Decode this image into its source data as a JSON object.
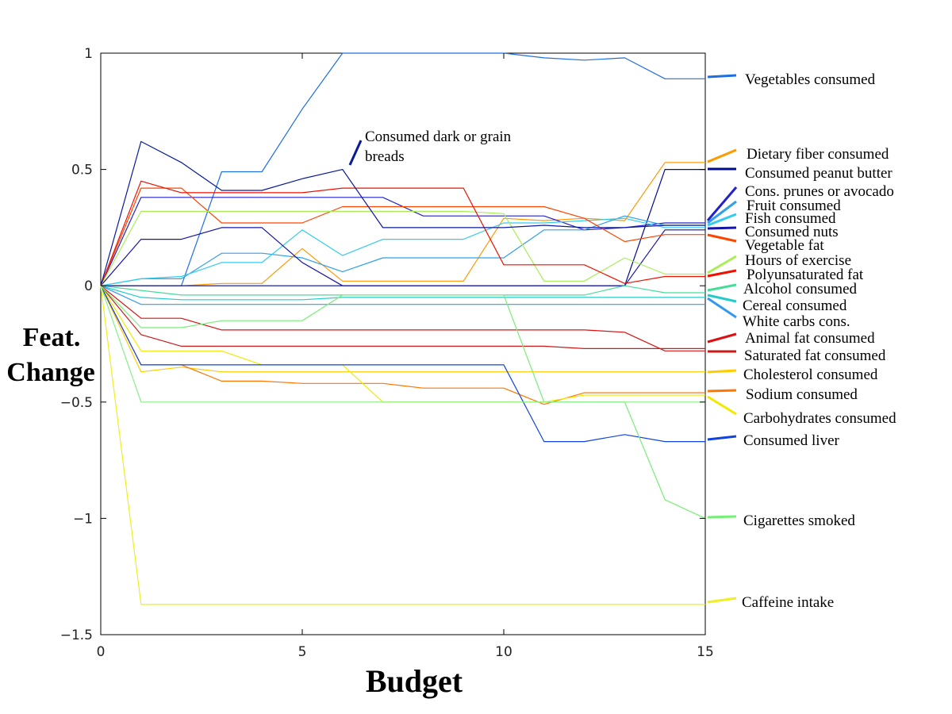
{
  "chart_data": {
    "type": "line",
    "xlabel": "Budget",
    "ylabel_lines": [
      "Feat.",
      "Change"
    ],
    "xlim": [
      0,
      15
    ],
    "ylim": [
      -1.5,
      1
    ],
    "xticks": [
      0,
      5,
      10,
      15
    ],
    "yticks": [
      -1.5,
      -1,
      -0.5,
      0,
      0.5,
      1
    ],
    "ytick_labels": [
      "−1.5",
      "−1",
      "−0.5",
      "0",
      "0.5",
      "1"
    ],
    "grid": false,
    "legend_position": "right",
    "x": [
      0,
      1,
      2,
      3,
      4,
      5,
      6,
      7,
      8,
      9,
      10,
      11,
      12,
      13,
      14,
      15
    ],
    "series": [
      {
        "name": "Vegetables consumed",
        "color": "#1f6fe0",
        "values": [
          0,
          0,
          0,
          0.49,
          0.49,
          0.76,
          1.0,
          1.0,
          1.0,
          1.0,
          1.0,
          0.98,
          0.97,
          0.98,
          0.89,
          0.89
        ]
      },
      {
        "name": "Dietary fiber consumed",
        "color": "#ff9900",
        "values": [
          0,
          0,
          0,
          0.01,
          0.01,
          0.16,
          0.02,
          0.02,
          0.02,
          0.02,
          0.29,
          0.28,
          0.29,
          0.28,
          0.53,
          0.53
        ]
      },
      {
        "name": "Consumed peanut butter",
        "color": "#000b8c",
        "values": [
          0,
          0,
          0,
          0,
          0,
          0,
          0,
          0,
          0,
          0,
          0,
          0,
          0,
          0,
          0.5,
          0.5
        ]
      },
      {
        "name": "Cons. prunes or avocado",
        "color": "#2222cc",
        "values": [
          0,
          0.38,
          0.38,
          0.38,
          0.38,
          0.38,
          0.38,
          0.38,
          0.3,
          0.3,
          0.3,
          0.3,
          0.24,
          0.25,
          0.27,
          0.27
        ]
      },
      {
        "name": "Fruit consumed",
        "color": "#30a0e8",
        "values": [
          0,
          0.03,
          0.03,
          0.14,
          0.14,
          0.12,
          0.06,
          0.12,
          0.12,
          0.12,
          0.12,
          0.24,
          0.24,
          0.3,
          0.26,
          0.26
        ]
      },
      {
        "name": "Fish consumed",
        "color": "#33ccee",
        "values": [
          0,
          0.03,
          0.04,
          0.1,
          0.1,
          0.24,
          0.13,
          0.2,
          0.2,
          0.2,
          0.27,
          0.27,
          0.28,
          0.29,
          0.25,
          0.25
        ]
      },
      {
        "name": "Consumed nuts",
        "color": "#1515aa",
        "values": [
          0,
          0.2,
          0.2,
          0.25,
          0.25,
          0.1,
          0,
          0,
          0,
          0,
          0,
          0,
          0,
          0,
          0.24,
          0.24
        ]
      },
      {
        "name": "Vegetable fat",
        "color": "#ff4400",
        "values": [
          0,
          0.42,
          0.42,
          0.27,
          0.27,
          0.27,
          0.34,
          0.34,
          0.34,
          0.34,
          0.34,
          0.34,
          0.29,
          0.19,
          0.22,
          0.22
        ]
      },
      {
        "name": "Hours of exercise",
        "color": "#a8ee55",
        "values": [
          0,
          0.32,
          0.32,
          0.32,
          0.32,
          0.32,
          0.32,
          0.32,
          0.32,
          0.32,
          0.31,
          0.02,
          0.02,
          0.12,
          0.05,
          0.05
        ]
      },
      {
        "name": "Polyunsaturated fat",
        "color": "#ee1100",
        "values": [
          0,
          0.45,
          0.4,
          0.4,
          0.4,
          0.4,
          0.42,
          0.42,
          0.42,
          0.42,
          0.09,
          0.09,
          0.09,
          0.01,
          0.04,
          0.04
        ]
      },
      {
        "name": "Alcohol consumed",
        "color": "#44dd99",
        "values": [
          0,
          -0.02,
          -0.04,
          -0.04,
          -0.04,
          -0.04,
          -0.04,
          -0.04,
          -0.04,
          -0.04,
          -0.04,
          -0.04,
          -0.04,
          0,
          -0.03,
          -0.03
        ]
      },
      {
        "name": "Cereal consumed",
        "color": "#22cccc",
        "values": [
          0,
          -0.05,
          -0.06,
          -0.06,
          -0.06,
          -0.06,
          -0.05,
          -0.05,
          -0.05,
          -0.05,
          -0.05,
          -0.05,
          -0.05,
          -0.05,
          -0.05,
          -0.05
        ]
      },
      {
        "name": "White carbs cons.",
        "color": "#3399ee",
        "values": [
          0,
          -0.08,
          -0.08,
          -0.08,
          -0.08,
          -0.08,
          -0.08,
          -0.08,
          -0.08,
          -0.08,
          -0.08,
          -0.08,
          -0.08,
          -0.08,
          -0.08,
          -0.08
        ]
      },
      {
        "name": "Animal fat consumed",
        "color": "#dd1111",
        "values": [
          0,
          -0.14,
          -0.14,
          -0.19,
          -0.19,
          -0.19,
          -0.19,
          -0.19,
          -0.19,
          -0.19,
          -0.19,
          -0.19,
          -0.19,
          -0.2,
          -0.28,
          -0.28
        ]
      },
      {
        "name": "Saturated fat consumed",
        "color": "#cc1a1a",
        "values": [
          0,
          -0.21,
          -0.26,
          -0.26,
          -0.26,
          -0.26,
          -0.26,
          -0.26,
          -0.26,
          -0.26,
          -0.26,
          -0.26,
          -0.27,
          -0.27,
          -0.27,
          -0.27
        ]
      },
      {
        "name": "Cholesterol consumed",
        "color": "#ffcc00",
        "values": [
          0,
          -0.37,
          -0.35,
          -0.37,
          -0.37,
          -0.37,
          -0.37,
          -0.37,
          -0.37,
          -0.37,
          -0.37,
          -0.37,
          -0.37,
          -0.37,
          -0.37,
          -0.37
        ]
      },
      {
        "name": "Sodium consumed",
        "color": "#ff7700",
        "values": [
          0,
          -0.34,
          -0.34,
          -0.41,
          -0.41,
          -0.42,
          -0.42,
          -0.42,
          -0.44,
          -0.44,
          -0.44,
          -0.51,
          -0.46,
          -0.46,
          -0.46,
          -0.46
        ]
      },
      {
        "name": "Carbohydrates consumed",
        "color": "#f2ea00",
        "values": [
          0,
          -0.28,
          -0.28,
          -0.28,
          -0.34,
          -0.34,
          -0.34,
          -0.5,
          -0.5,
          -0.5,
          -0.5,
          -0.5,
          -0.47,
          -0.47,
          -0.47,
          -0.47
        ]
      },
      {
        "name": "Consumed liver",
        "color": "#1144dd",
        "values": [
          0,
          -0.34,
          -0.34,
          -0.34,
          -0.34,
          -0.34,
          -0.34,
          -0.34,
          -0.34,
          -0.34,
          -0.34,
          -0.67,
          -0.67,
          -0.64,
          -0.67,
          -0.67
        ]
      },
      {
        "name": "Cigarettes smoked",
        "color": "#77ee77",
        "values": [
          0,
          -0.18,
          -0.18,
          -0.15,
          -0.15,
          -0.15,
          -0.04,
          -0.04,
          -0.04,
          -0.04,
          -0.04,
          -0.5,
          -0.5,
          -0.5,
          -0.92,
          -1.0
        ]
      },
      {
        "name": "Cigarettes smoked",
        "color": "#88ee88",
        "values": [
          0,
          -0.5,
          -0.5,
          -0.5,
          -0.5,
          -0.5,
          -0.5,
          -0.5,
          -0.5,
          -0.5,
          -0.5,
          -0.5,
          -0.5,
          -0.5,
          -0.5,
          -0.5
        ]
      },
      {
        "name": "Caffeine intake",
        "color": "#eeee22",
        "values": [
          0,
          -1.37,
          -1.37,
          -1.37,
          -1.37,
          -1.37,
          -1.37,
          -1.37,
          -1.37,
          -1.37,
          -1.37,
          -1.37,
          -1.37,
          -1.37,
          -1.37,
          -1.37
        ]
      },
      {
        "name": "Consumed dark or grain breads",
        "color": "#0a1a99",
        "values": [
          0,
          0.62,
          0.53,
          0.41,
          0.41,
          0.46,
          0.5,
          0.25,
          0.25,
          0.25,
          0.25,
          0.26,
          0.25,
          0.25,
          0.26,
          0.26
        ]
      }
    ],
    "legend": [
      {
        "label": "Vegetables consumed",
        "color": "#1f6fe0"
      },
      {
        "label": "Dietary fiber consumed",
        "color": "#ff9900"
      },
      {
        "label": "Consumed peanut butter",
        "color": "#000b8c"
      },
      {
        "label": "Cons. prunes or avocado",
        "color": "#2222cc"
      },
      {
        "label": "Fruit consumed",
        "color": "#30a0e8"
      },
      {
        "label": "Fish consumed",
        "color": "#33ccee"
      },
      {
        "label": "Consumed nuts",
        "color": "#1515aa"
      },
      {
        "label": "Vegetable fat",
        "color": "#ff4400"
      },
      {
        "label": "Hours of exercise",
        "color": "#a8ee55"
      },
      {
        "label": "Polyunsaturated fat",
        "color": "#ee1100"
      },
      {
        "label": "Alcohol consumed",
        "color": "#44dd99"
      },
      {
        "label": "Cereal consumed",
        "color": "#22cccc"
      },
      {
        "label": "White carbs cons.",
        "color": "#3399ee"
      },
      {
        "label": "Animal fat consumed",
        "color": "#dd1111"
      },
      {
        "label": "Saturated fat consumed",
        "color": "#cc1a1a"
      },
      {
        "label": "Cholesterol consumed",
        "color": "#ffcc00"
      },
      {
        "label": "Sodium consumed",
        "color": "#ff7700"
      },
      {
        "label": "Carbohydrates consumed",
        "color": "#f2ea00"
      },
      {
        "label": "Consumed liver",
        "color": "#1144dd"
      },
      {
        "label": "Cigarettes smoked",
        "color": "#77ee77"
      },
      {
        "label": "Caffeine intake",
        "color": "#eeee22"
      }
    ],
    "annotation": {
      "lines": [
        "Consumed dark or grain",
        "breads"
      ],
      "color": "#0a1a99"
    }
  }
}
